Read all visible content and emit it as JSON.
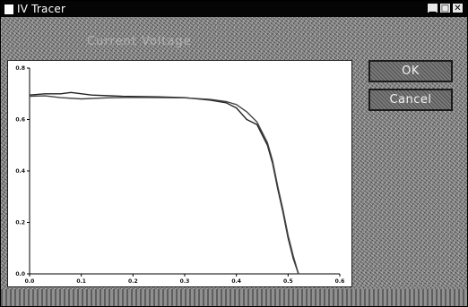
{
  "window": {
    "title": "IV Tracer",
    "controls": {
      "minimize": "▁",
      "maximize": "□",
      "close": "✕"
    }
  },
  "caption": "Current Voltage",
  "buttons": {
    "ok": "OK",
    "cancel": "Cancel"
  },
  "chart_data": {
    "type": "line",
    "xlim": [
      0.0,
      0.6
    ],
    "ylim": [
      0.0,
      0.8
    ],
    "xticks": [
      "0.0",
      "0.1",
      "0.2",
      "0.3",
      "0.4",
      "0.5",
      "0.6"
    ],
    "yticks": [
      "0.0",
      "0.2",
      "0.4",
      "0.6",
      "0.8"
    ],
    "grid": false,
    "legend": false,
    "series": [
      {
        "color": "#222222",
        "x": [
          0.0,
          0.03,
          0.06,
          0.08,
          0.12,
          0.18,
          0.25,
          0.3,
          0.35,
          0.38,
          0.4,
          0.42,
          0.44,
          0.46,
          0.47,
          0.48,
          0.49,
          0.5,
          0.51,
          0.52
        ],
        "y": [
          0.695,
          0.7,
          0.7,
          0.705,
          0.695,
          0.69,
          0.688,
          0.685,
          0.675,
          0.665,
          0.645,
          0.6,
          0.58,
          0.5,
          0.43,
          0.33,
          0.24,
          0.14,
          0.06,
          0.0
        ]
      },
      {
        "color": "#444444",
        "x": [
          0.0,
          0.03,
          0.06,
          0.1,
          0.15,
          0.2,
          0.25,
          0.3,
          0.35,
          0.38,
          0.4,
          0.42,
          0.44,
          0.46,
          0.47,
          0.48,
          0.49,
          0.5,
          0.51,
          0.52
        ],
        "y": [
          0.69,
          0.692,
          0.685,
          0.68,
          0.684,
          0.686,
          0.685,
          0.684,
          0.678,
          0.67,
          0.658,
          0.63,
          0.59,
          0.51,
          0.44,
          0.34,
          0.25,
          0.15,
          0.07,
          0.0
        ]
      }
    ]
  }
}
